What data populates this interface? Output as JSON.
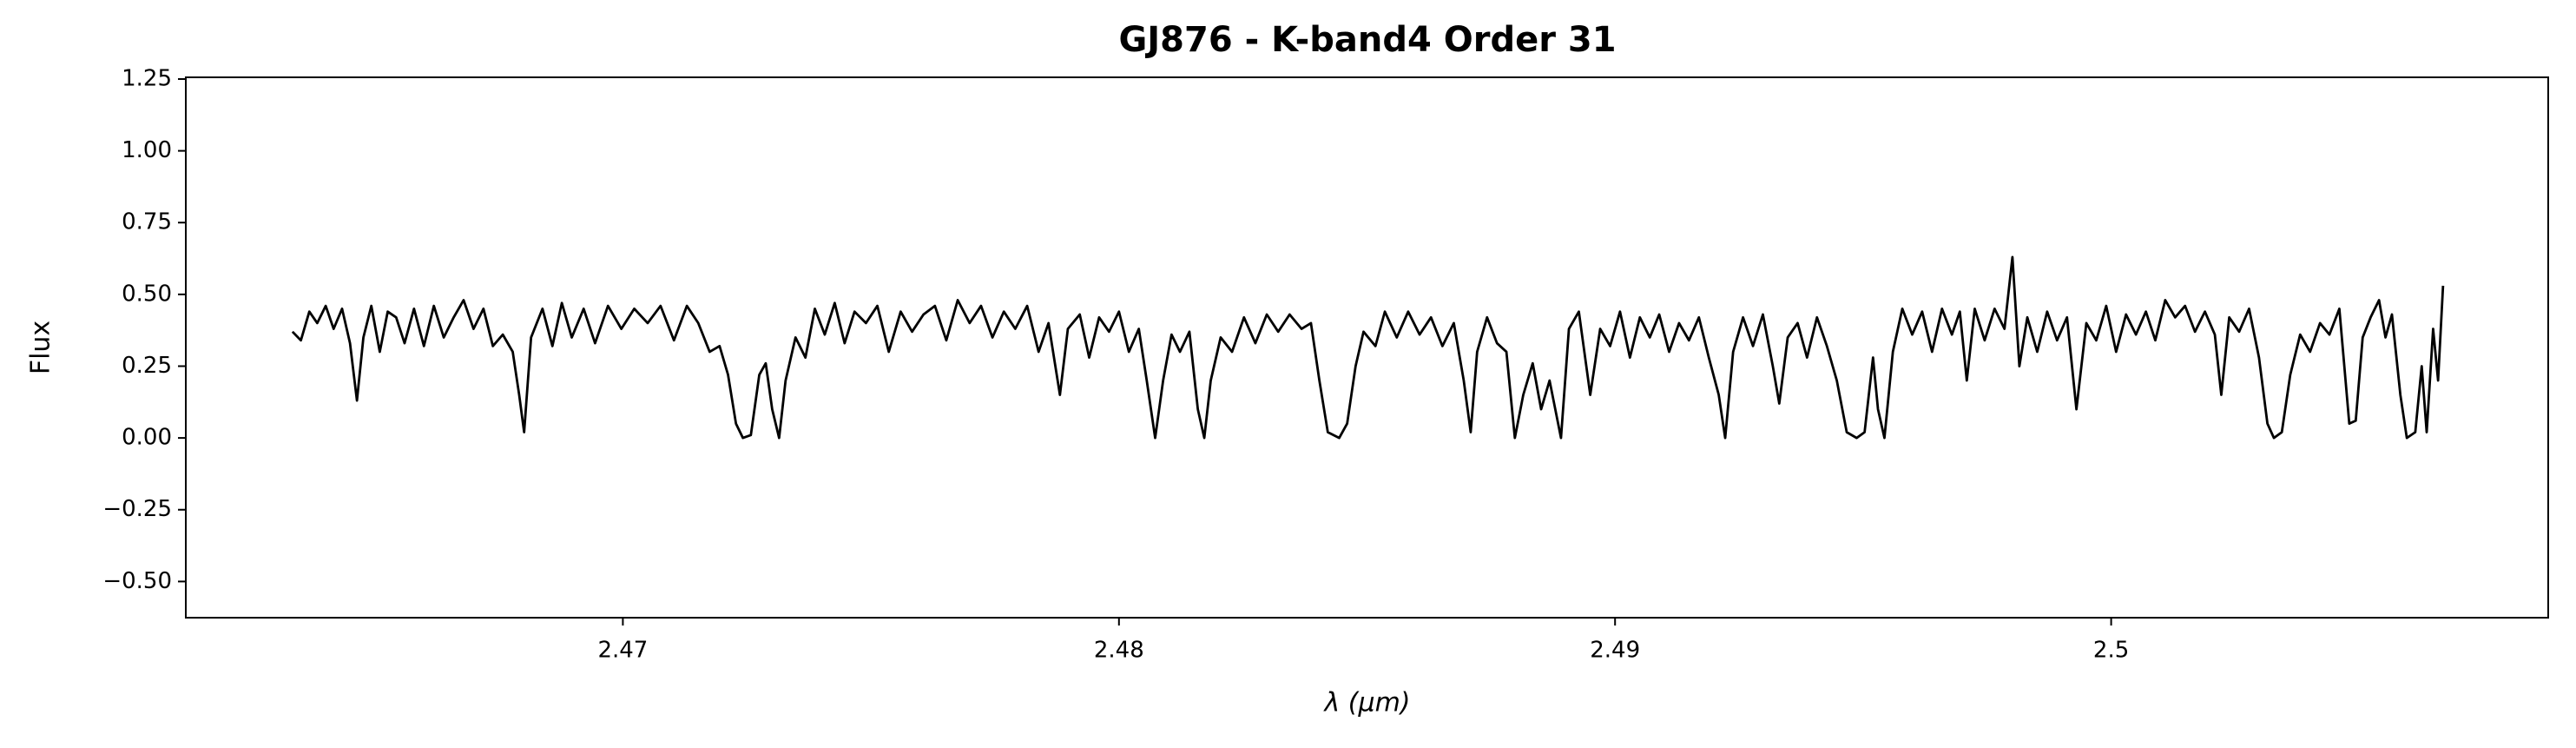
{
  "chart_data": {
    "type": "line",
    "title": "GJ876 - K-band4 Order 31",
    "xlabel": "λ (μm)",
    "ylabel": "Flux",
    "color": "#000000",
    "xlim": [
      2.46119,
      2.50881
    ],
    "ylim": [
      -0.626,
      1.256
    ],
    "xticks": [
      2.47,
      2.48,
      2.49,
      2.5
    ],
    "xtick_labels_override": null,
    "yticks": [
      {
        "value": -0.5,
        "label": "−0.50"
      },
      {
        "value": -0.25,
        "label": "−0.25"
      },
      {
        "value": 0,
        "label": "0.00"
      },
      0.25,
      {
        "value": 0.5,
        "label": "0.50"
      },
      0.75,
      {
        "value": 1,
        "label": "1.00"
      },
      1.25
    ],
    "x": [
      2.46334,
      2.46351,
      2.46368,
      2.46384,
      2.46401,
      2.46417,
      2.46434,
      2.4645,
      2.46464,
      2.46477,
      2.46493,
      2.4651,
      2.46526,
      2.46543,
      2.4656,
      2.46579,
      2.46599,
      2.46619,
      2.46639,
      2.46659,
      2.46679,
      2.46699,
      2.46719,
      2.46738,
      2.46758,
      2.46778,
      2.46791,
      2.46801,
      2.46815,
      2.46838,
      2.46858,
      2.46877,
      2.46897,
      2.46921,
      2.46944,
      2.4697,
      2.46997,
      2.47023,
      2.4705,
      2.47076,
      2.47103,
      2.47129,
      2.47152,
      2.47175,
      2.47195,
      2.47212,
      2.47228,
      2.47242,
      2.47258,
      2.47275,
      2.47288,
      2.47301,
      2.47315,
      2.47328,
      2.47348,
      2.47368,
      2.47387,
      2.47407,
      2.47427,
      2.47447,
      2.47467,
      2.4749,
      2.47513,
      2.47536,
      2.4756,
      2.47583,
      2.47606,
      2.47629,
      2.47652,
      2.47675,
      2.47699,
      2.47722,
      2.47745,
      2.47768,
      2.47791,
      2.47815,
      2.47838,
      2.47858,
      2.47881,
      2.47897,
      2.47921,
      2.4794,
      2.4796,
      2.4798,
      2.48,
      2.4802,
      2.4804,
      2.48056,
      2.48073,
      2.48089,
      2.48106,
      2.48123,
      2.48142,
      2.48159,
      2.48172,
      2.48185,
      2.48205,
      2.48228,
      2.48252,
      2.48275,
      2.48298,
      2.48321,
      2.48344,
      2.48368,
      2.48387,
      2.48404,
      2.48421,
      2.48444,
      2.4846,
      2.48477,
      2.48493,
      2.48517,
      2.48536,
      2.4856,
      2.48583,
      2.48606,
      2.48629,
      2.48652,
      2.48675,
      2.48695,
      2.48709,
      2.48722,
      2.48742,
      2.48762,
      2.48781,
      2.48798,
      2.48815,
      2.48834,
      2.48851,
      2.48868,
      2.48891,
      2.48907,
      2.48927,
      2.4895,
      2.4897,
      2.4899,
      2.4901,
      2.4903,
      2.4905,
      2.4907,
      2.49089,
      2.49109,
      2.49129,
      2.49149,
      2.49169,
      2.49189,
      2.49209,
      2.49222,
      2.49238,
      2.49258,
      2.49278,
      2.49298,
      2.49318,
      2.49331,
      2.49348,
      2.49368,
      2.49387,
      2.49407,
      2.49427,
      2.49447,
      2.49467,
      2.49487,
      2.49503,
      2.4952,
      2.4953,
      2.49543,
      2.4956,
      2.49579,
      2.49599,
      2.49619,
      2.49639,
      2.49659,
      2.49679,
      2.49695,
      2.49709,
      2.49725,
      2.49745,
      2.49765,
      2.49785,
      2.49801,
      2.49815,
      2.49831,
      2.49851,
      2.49871,
      2.49891,
      2.49911,
      2.4993,
      2.4995,
      2.4997,
      2.4999,
      2.5001,
      2.5003,
      2.5005,
      2.5007,
      2.50089,
      2.50109,
      2.50129,
      2.50149,
      2.50169,
      2.50189,
      2.50209,
      2.50222,
      2.50238,
      2.50258,
      2.50278,
      2.50298,
      2.50315,
      2.50328,
      2.50344,
      2.50361,
      2.50381,
      2.50401,
      2.50421,
      2.5044,
      2.5046,
      2.5048,
      2.50493,
      2.50507,
      2.50523,
      2.5054,
      2.50553,
      2.50566,
      2.50583,
      2.50596,
      2.50613,
      2.50626,
      2.50636,
      2.50649,
      2.50659,
      2.50669
    ],
    "values": [
      0.37,
      0.34,
      0.44,
      0.4,
      0.46,
      0.38,
      0.45,
      0.33,
      0.13,
      0.35,
      0.46,
      0.3,
      0.44,
      0.42,
      0.33,
      0.45,
      0.32,
      0.46,
      0.35,
      0.42,
      0.48,
      0.38,
      0.45,
      0.32,
      0.36,
      0.3,
      0.15,
      0.02,
      0.35,
      0.45,
      0.32,
      0.47,
      0.35,
      0.45,
      0.33,
      0.46,
      0.38,
      0.45,
      0.4,
      0.46,
      0.34,
      0.46,
      0.4,
      0.3,
      0.32,
      0.22,
      0.05,
      0.0,
      0.01,
      0.22,
      0.26,
      0.1,
      0.0,
      0.2,
      0.35,
      0.28,
      0.45,
      0.36,
      0.47,
      0.33,
      0.44,
      0.4,
      0.46,
      0.3,
      0.44,
      0.37,
      0.43,
      0.46,
      0.34,
      0.48,
      0.4,
      0.46,
      0.35,
      0.44,
      0.38,
      0.46,
      0.3,
      0.4,
      0.15,
      0.38,
      0.43,
      0.28,
      0.42,
      0.37,
      0.44,
      0.3,
      0.38,
      0.2,
      0.0,
      0.2,
      0.36,
      0.3,
      0.37,
      0.1,
      0.0,
      0.2,
      0.35,
      0.3,
      0.42,
      0.33,
      0.43,
      0.37,
      0.43,
      0.38,
      0.4,
      0.2,
      0.02,
      0.0,
      0.05,
      0.25,
      0.37,
      0.32,
      0.44,
      0.35,
      0.44,
      0.36,
      0.42,
      0.32,
      0.4,
      0.2,
      0.02,
      0.3,
      0.42,
      0.33,
      0.3,
      0.0,
      0.15,
      0.26,
      0.1,
      0.2,
      0.0,
      0.38,
      0.44,
      0.15,
      0.38,
      0.32,
      0.44,
      0.28,
      0.42,
      0.35,
      0.43,
      0.3,
      0.4,
      0.34,
      0.42,
      0.28,
      0.15,
      0.0,
      0.3,
      0.42,
      0.32,
      0.43,
      0.25,
      0.12,
      0.35,
      0.4,
      0.28,
      0.42,
      0.32,
      0.2,
      0.02,
      0.0,
      0.02,
      0.28,
      0.1,
      0.0,
      0.3,
      0.45,
      0.36,
      0.44,
      0.3,
      0.45,
      0.36,
      0.44,
      0.2,
      0.45,
      0.34,
      0.45,
      0.38,
      0.63,
      0.25,
      0.42,
      0.3,
      0.44,
      0.34,
      0.42,
      0.1,
      0.4,
      0.34,
      0.46,
      0.3,
      0.43,
      0.36,
      0.44,
      0.34,
      0.48,
      0.42,
      0.46,
      0.37,
      0.44,
      0.36,
      0.15,
      0.42,
      0.37,
      0.45,
      0.28,
      0.05,
      0.0,
      0.02,
      0.22,
      0.36,
      0.3,
      0.4,
      0.36,
      0.45,
      0.05,
      0.06,
      0.35,
      0.42,
      0.48,
      0.35,
      0.43,
      0.15,
      0.0,
      0.02,
      0.25,
      0.02,
      0.38,
      0.2,
      0.53
    ]
  }
}
